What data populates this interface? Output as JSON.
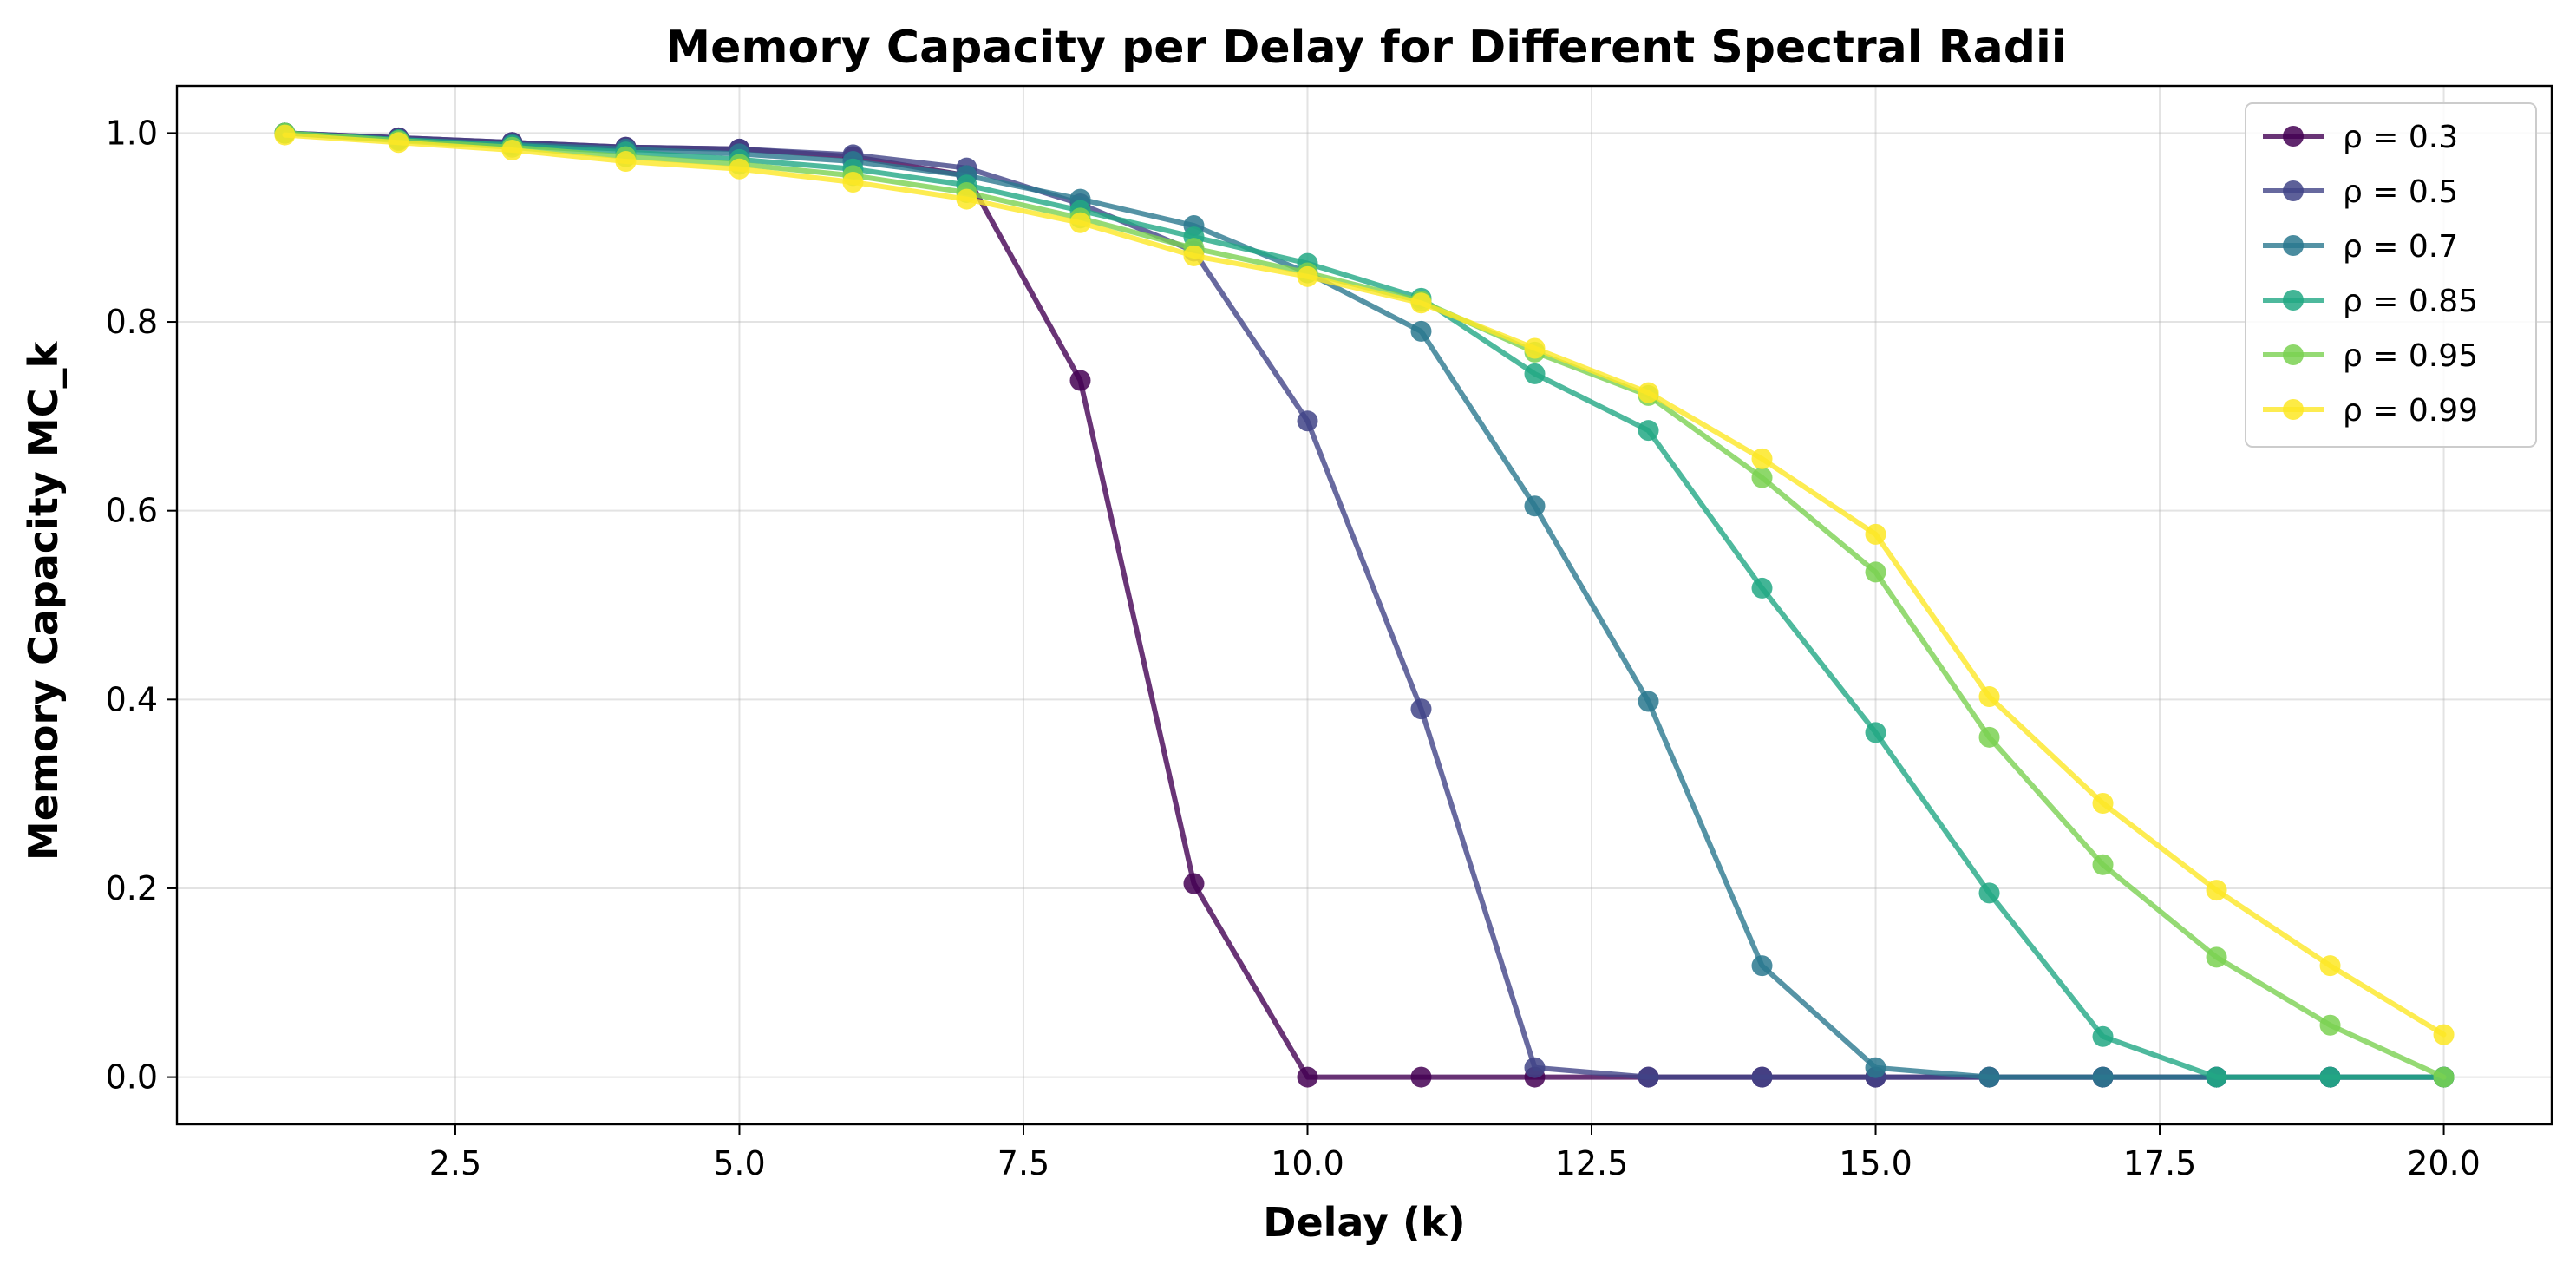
{
  "chart_data": {
    "type": "line",
    "title": "Memory Capacity per Delay for Different Spectral Radii",
    "xlabel": "Delay (k)",
    "ylabel": "Memory Capacity MC_k",
    "xlim": [
      0.05,
      20.95
    ],
    "ylim": [
      -0.05,
      1.05
    ],
    "xticks": [
      2.5,
      5.0,
      7.5,
      10.0,
      12.5,
      15.0,
      17.5,
      20.0
    ],
    "xtick_labels": [
      "2.5",
      "5.0",
      "7.5",
      "10.0",
      "12.5",
      "15.0",
      "17.5",
      "20.0"
    ],
    "yticks": [
      0.0,
      0.2,
      0.4,
      0.6,
      0.8,
      1.0
    ],
    "ytick_labels": [
      "0.0",
      "0.2",
      "0.4",
      "0.6",
      "0.8",
      "1.0"
    ],
    "grid": true,
    "legend_position": "top-right",
    "x": [
      1,
      2,
      3,
      4,
      5,
      6,
      7,
      8,
      9,
      10,
      11,
      12,
      13,
      14,
      15,
      16,
      17,
      18,
      19,
      20
    ],
    "series": [
      {
        "name": "ρ = 0.3",
        "color": "#440154",
        "values": [
          1.0,
          0.995,
          0.99,
          0.985,
          0.983,
          0.975,
          0.955,
          0.738,
          0.205,
          0.0,
          0.0,
          0.0,
          0.0,
          0.0,
          0.0,
          0.0,
          0.0,
          0.0,
          0.0,
          0.0
        ]
      },
      {
        "name": "ρ = 0.5",
        "color": "#414487",
        "values": [
          1.0,
          0.995,
          0.99,
          0.985,
          0.983,
          0.977,
          0.963,
          0.925,
          0.875,
          0.695,
          0.39,
          0.01,
          0.0,
          0.0,
          0.0,
          0.0,
          0.0,
          0.0,
          0.0,
          0.0
        ]
      },
      {
        "name": "ρ = 0.7",
        "color": "#2a788e",
        "values": [
          1.0,
          0.993,
          0.988,
          0.983,
          0.978,
          0.97,
          0.955,
          0.93,
          0.902,
          0.852,
          0.79,
          0.605,
          0.398,
          0.118,
          0.01,
          0.0,
          0.0,
          0.0,
          0.0,
          0.0
        ]
      },
      {
        "name": "ρ = 0.85",
        "color": "#22a884",
        "values": [
          1.0,
          0.993,
          0.987,
          0.98,
          0.972,
          0.962,
          0.945,
          0.918,
          0.89,
          0.862,
          0.825,
          0.745,
          0.685,
          0.518,
          0.365,
          0.195,
          0.043,
          0.0,
          0.0,
          0.0
        ]
      },
      {
        "name": "ρ = 0.95",
        "color": "#7ad151",
        "values": [
          1.0,
          0.992,
          0.985,
          0.975,
          0.967,
          0.955,
          0.937,
          0.91,
          0.878,
          0.852,
          0.822,
          0.768,
          0.722,
          0.635,
          0.535,
          0.36,
          0.225,
          0.127,
          0.055,
          0.0
        ]
      },
      {
        "name": "ρ = 0.99",
        "color": "#fde725",
        "values": [
          0.998,
          0.99,
          0.982,
          0.97,
          0.962,
          0.948,
          0.93,
          0.905,
          0.87,
          0.848,
          0.82,
          0.772,
          0.725,
          0.655,
          0.575,
          0.403,
          0.29,
          0.198,
          0.118,
          0.045
        ]
      }
    ]
  }
}
